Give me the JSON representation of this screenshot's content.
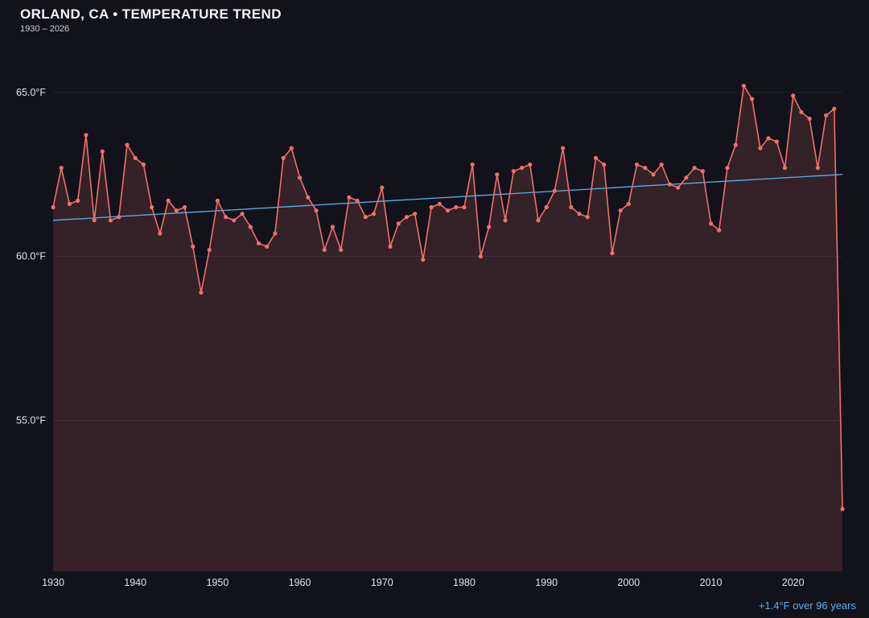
{
  "header": {
    "title": "ORLAND, CA • TEMPERATURE TREND",
    "subtitle": "1930 – 2026"
  },
  "footer": {
    "trend_note": "+1.4°F over 96 years"
  },
  "colors": {
    "background": "#12121b",
    "line": "#ef6e6e",
    "fill": "rgba(239,110,110,0.16)",
    "trend": "#56b4e9",
    "grid": "#232330",
    "tick_text": "#e2e2ea",
    "accent": "#56b4e9"
  },
  "chart_data": {
    "type": "line",
    "title": "ORLAND, CA • TEMPERATURE TREND",
    "subtitle": "1930 – 2026",
    "xlabel": "",
    "ylabel": "",
    "legend": "none",
    "grid": "horizontal-only",
    "x_range": [
      1930,
      2026
    ],
    "y_range": [
      50.4,
      66.1
    ],
    "x_ticks": [
      1930,
      1940,
      1950,
      1960,
      1970,
      1980,
      1990,
      2000,
      2010,
      2020
    ],
    "y_tick_values": [
      65,
      60,
      55
    ],
    "y_tick_labels": [
      "65.0°F",
      "60.0°F",
      "55.0°F"
    ],
    "years": [
      1930,
      1931,
      1932,
      1933,
      1934,
      1935,
      1936,
      1937,
      1938,
      1939,
      1940,
      1941,
      1942,
      1943,
      1944,
      1945,
      1946,
      1947,
      1948,
      1949,
      1950,
      1951,
      1952,
      1953,
      1954,
      1955,
      1956,
      1957,
      1958,
      1959,
      1960,
      1961,
      1962,
      1963,
      1964,
      1965,
      1966,
      1967,
      1968,
      1969,
      1970,
      1971,
      1972,
      1973,
      1974,
      1975,
      1976,
      1977,
      1978,
      1979,
      1980,
      1981,
      1982,
      1983,
      1984,
      1985,
      1986,
      1987,
      1988,
      1989,
      1990,
      1991,
      1992,
      1993,
      1994,
      1995,
      1996,
      1997,
      1998,
      1999,
      2000,
      2001,
      2002,
      2003,
      2004,
      2005,
      2006,
      2007,
      2008,
      2009,
      2010,
      2011,
      2012,
      2013,
      2014,
      2015,
      2016,
      2017,
      2018,
      2019,
      2020,
      2021,
      2022,
      2023,
      2024,
      2025,
      2026
    ],
    "values": [
      61.5,
      62.7,
      61.6,
      61.7,
      63.7,
      61.1,
      63.2,
      61.1,
      61.2,
      63.4,
      63.0,
      62.8,
      61.5,
      60.7,
      61.7,
      61.4,
      61.5,
      60.3,
      58.9,
      60.2,
      61.7,
      61.2,
      61.1,
      61.3,
      60.9,
      60.4,
      60.3,
      60.7,
      63.0,
      63.3,
      62.4,
      61.8,
      61.4,
      60.2,
      60.9,
      60.2,
      61.8,
      61.7,
      61.2,
      61.3,
      62.1,
      60.3,
      61.0,
      61.2,
      61.3,
      59.9,
      61.5,
      61.6,
      61.4,
      61.5,
      61.5,
      62.8,
      60.0,
      60.9,
      62.5,
      61.1,
      62.6,
      62.7,
      62.8,
      61.1,
      61.5,
      62.0,
      63.3,
      61.5,
      61.3,
      61.2,
      63.0,
      62.8,
      60.1,
      61.4,
      61.6,
      62.8,
      62.7,
      62.5,
      62.8,
      62.2,
      62.1,
      62.4,
      62.7,
      62.6,
      61.0,
      60.8,
      62.7,
      63.4,
      65.2,
      64.8,
      63.3,
      63.6,
      63.5,
      62.7,
      64.9,
      64.4,
      64.2,
      62.7,
      64.3,
      64.5,
      52.3
    ],
    "trend": {
      "start_year": 1930,
      "end_year": 2026,
      "start_value": 61.1,
      "end_value": 62.5,
      "label": "+1.4°F over 96 years"
    }
  }
}
